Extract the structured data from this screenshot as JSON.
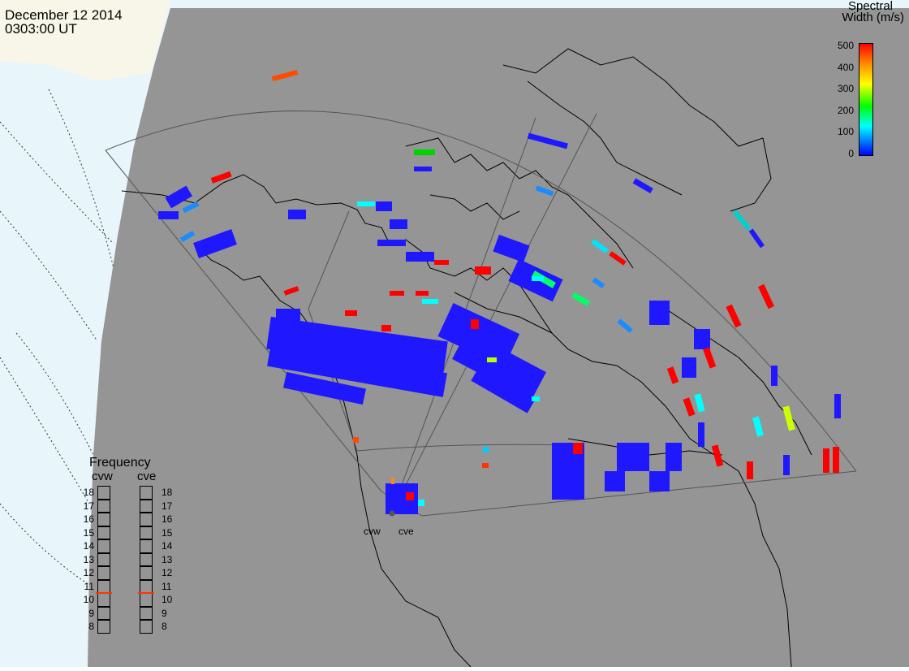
{
  "header": {
    "date": "December 12 2014",
    "time": "0303:00 UT"
  },
  "legend": {
    "title_line1": "Spectral",
    "title_line2": "Width (m/s)",
    "ticks": [
      "500",
      "400",
      "300",
      "200",
      "100",
      "0"
    ],
    "colors": [
      "#ff0000",
      "#ff8c00",
      "#ffff00",
      "#00ff00",
      "#00ffff",
      "#0000ff"
    ]
  },
  "frequency_panel": {
    "title": "Frequency",
    "columns": [
      {
        "label": "cvw",
        "selected": 11
      },
      {
        "label": "cve",
        "selected": 11
      }
    ],
    "ticks": [
      "18",
      "17",
      "16",
      "15",
      "14",
      "13",
      "12",
      "11",
      "10",
      "9",
      "8"
    ],
    "marker_color": "#ff3300"
  },
  "radars": [
    {
      "label": "cvw"
    },
    {
      "label": "cve"
    }
  ],
  "map_colors": {
    "land": "#959595",
    "ocean": "#e8f6fb",
    "sea_ice": "#f7f6e8",
    "coast": "#000000",
    "fov": "#555555"
  }
}
